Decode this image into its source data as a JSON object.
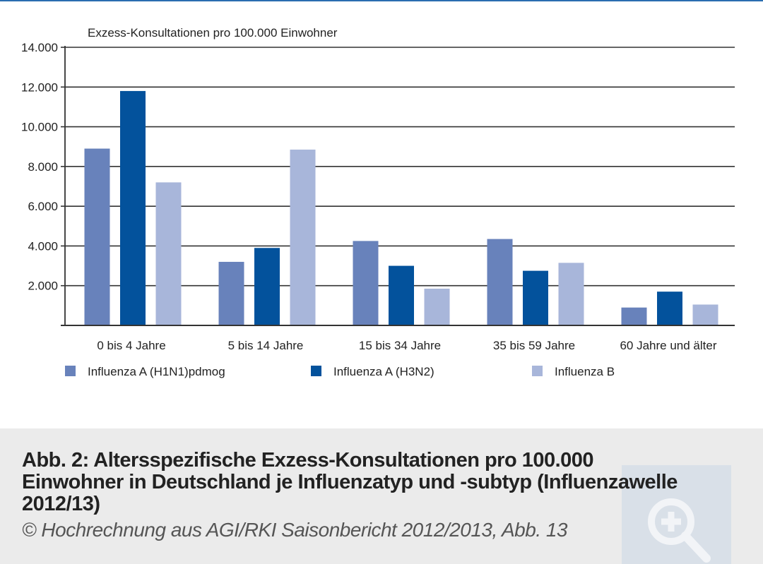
{
  "chart_data": {
    "type": "bar",
    "title": "Exzess-Konsultationen pro 100.000 Einwohner",
    "xlabel": "",
    "ylabel": "Exzess-Konsultationen pro 100.000 Einwohner",
    "ylim": [
      0,
      14000
    ],
    "yticks": [
      0,
      2000,
      4000,
      6000,
      8000,
      10000,
      12000,
      14000
    ],
    "ytick_labels": [
      "",
      "2.000",
      "4.000",
      "6.000",
      "8.000",
      "10.000",
      "12.000",
      "14.000"
    ],
    "grid": true,
    "legend_position": "bottom",
    "categories": [
      "0 bis 4 Jahre",
      "5 bis 14 Jahre",
      "15 bis 34 Jahre",
      "35 bis 59 Jahre",
      "60 Jahre und älter"
    ],
    "series": [
      {
        "name": "Influenza A (H1N1)pdmog",
        "color": "#6882bb",
        "values": [
          8900,
          3200,
          4250,
          4350,
          900
        ]
      },
      {
        "name": "Influenza A (H3N2)",
        "color": "#03529c",
        "values": [
          11800,
          3900,
          3000,
          2750,
          1700
        ]
      },
      {
        "name": "Influenza B",
        "color": "#a8b6da",
        "values": [
          7200,
          8850,
          1850,
          3150,
          1050
        ]
      }
    ]
  },
  "caption": {
    "title": "Abb. 2: Altersspezifische Exzess-Konsultationen pro 100.000 Einwohner in Deutschland je Influenzatyp und -subtyp (Influenzawelle 2012/13)",
    "source": "© Hochrechnung aus AGI/RKI Saisonbericht 2012/2013, Abb. 13"
  }
}
